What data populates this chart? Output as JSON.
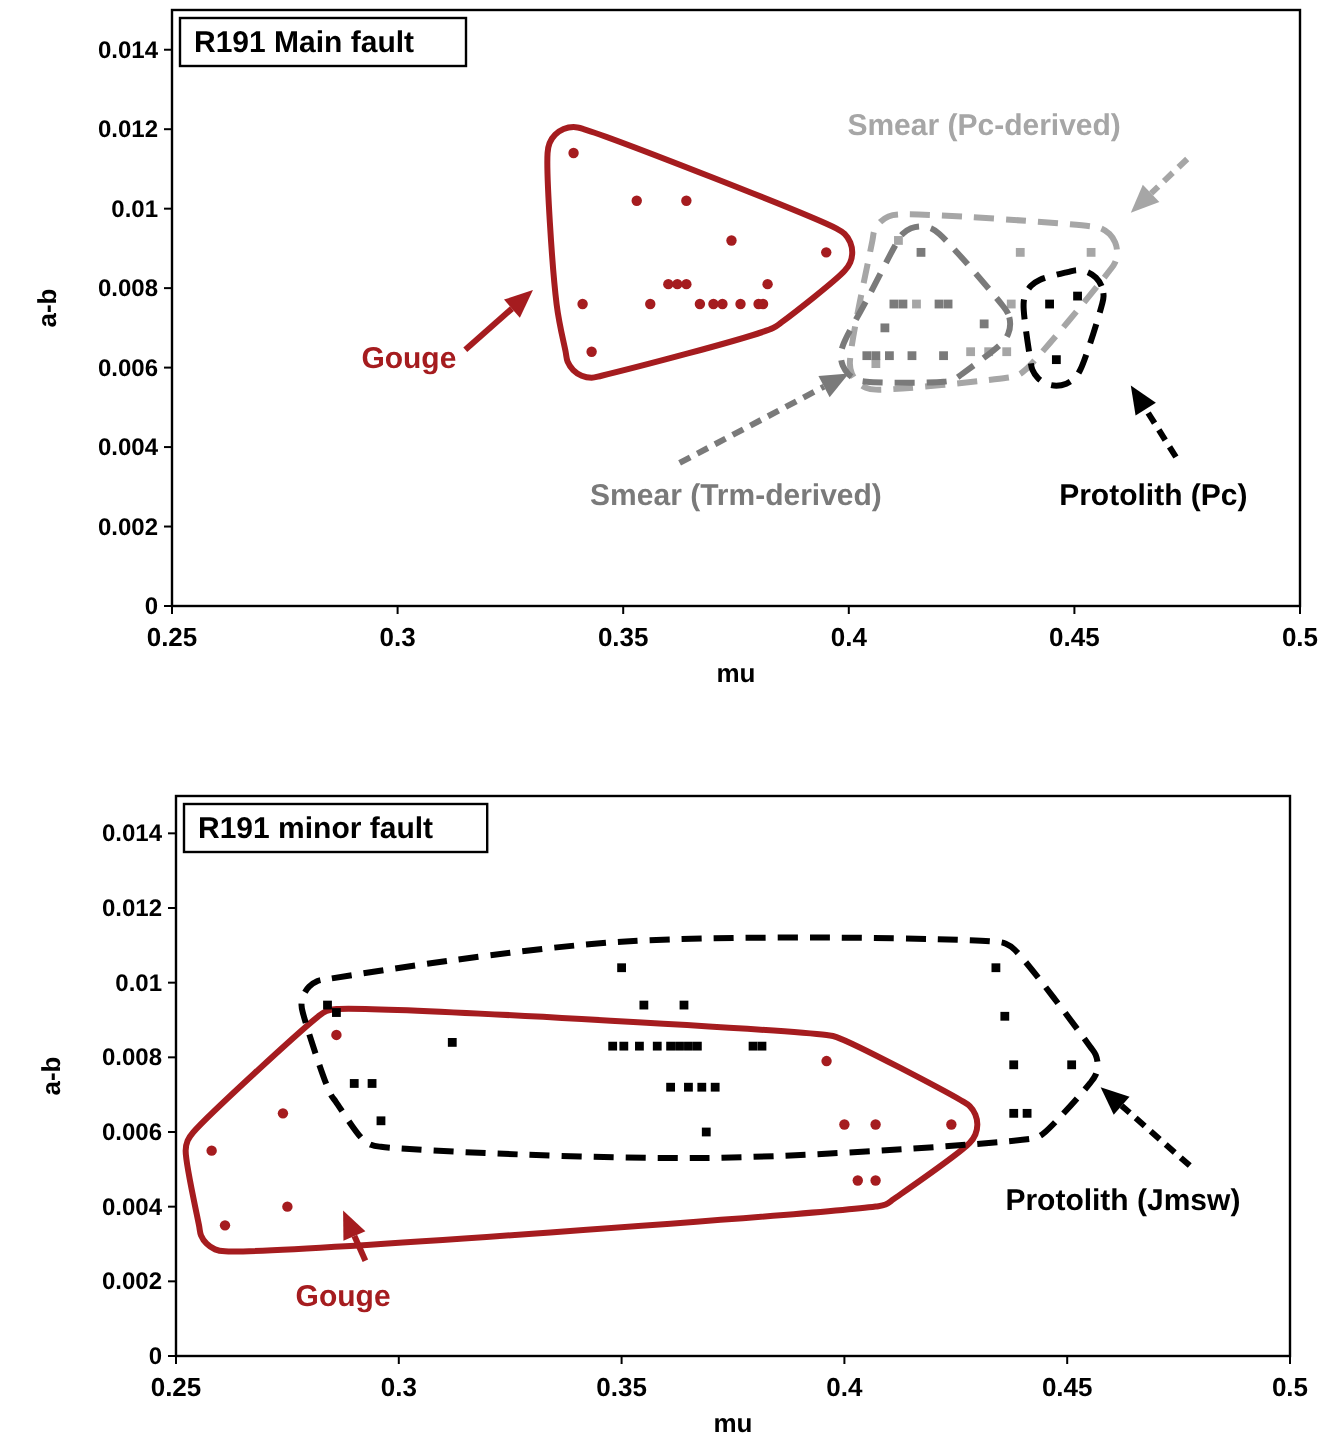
{
  "chart_data": [
    {
      "type": "scatter",
      "title": "R191 Main fault",
      "xlabel": "mu",
      "ylabel": "a-b",
      "xlim": [
        0.25,
        0.5
      ],
      "ylim": [
        0,
        0.015
      ],
      "xticks": [
        0.25,
        0.3,
        0.35,
        0.4,
        0.45,
        0.5
      ],
      "yticks": [
        0,
        0.002,
        0.004,
        0.006,
        0.008,
        0.01,
        0.012,
        0.014
      ],
      "series": [
        {
          "name": "Gouge",
          "color": "#a51c1f",
          "marker": "circle",
          "line_style": "solid",
          "x": [
            0.339,
            0.353,
            0.364,
            0.374,
            0.395,
            0.36,
            0.362,
            0.364,
            0.382,
            0.341,
            0.356,
            0.367,
            0.37,
            0.372,
            0.376,
            0.38,
            0.381,
            0.343
          ],
          "values": [
            0.0114,
            0.0102,
            0.0102,
            0.0092,
            0.0089,
            0.0081,
            0.0081,
            0.0081,
            0.0081,
            0.0076,
            0.0076,
            0.0076,
            0.0076,
            0.0076,
            0.0076,
            0.0076,
            0.0076,
            0.0064
          ]
        },
        {
          "name": "Smear (Pc-derived)",
          "color": "#a6a6a6",
          "marker": "square",
          "line_style": "dashed",
          "x": [
            0.411,
            0.415,
            0.436,
            0.406,
            0.427,
            0.431,
            0.435,
            0.438,
            0.4537
          ],
          "values": [
            0.0092,
            0.0076,
            0.0076,
            0.0061,
            0.0064,
            0.0064,
            0.0064,
            0.0089,
            0.0089
          ]
        },
        {
          "name": "Smear (Trm-derived)",
          "color": "#7a7a7a",
          "marker": "square",
          "line_style": "dashed",
          "x": [
            0.416,
            0.41,
            0.412,
            0.42,
            0.422,
            0.408,
            0.43,
            0.404,
            0.406,
            0.409,
            0.414,
            0.421
          ],
          "values": [
            0.0089,
            0.0076,
            0.0076,
            0.0076,
            0.0076,
            0.007,
            0.0071,
            0.0063,
            0.0063,
            0.0063,
            0.0063,
            0.0063
          ]
        },
        {
          "name": "Protolith (Pc)",
          "color": "#000000",
          "marker": "square",
          "line_style": "dashed",
          "x": [
            0.4445,
            0.4507,
            0.446
          ],
          "values": [
            0.0076,
            0.0078,
            0.0062
          ]
        }
      ]
    },
    {
      "type": "scatter",
      "title": "R191 minor fault",
      "legend": "bottom",
      "xlabel": "mu",
      "ylabel": "a-b",
      "xlim": [
        0.25,
        0.5
      ],
      "ylim": [
        0,
        0.015
      ],
      "xticks": [
        0.25,
        0.3,
        0.35,
        0.4,
        0.45,
        0.5
      ],
      "yticks": [
        0,
        0.002,
        0.004,
        0.006,
        0.008,
        0.01,
        0.012,
        0.014
      ],
      "series": [
        {
          "name": "Gouge",
          "color": "#a51c1f",
          "marker": "circle",
          "line_style": "solid",
          "x": [
            0.286,
            0.274,
            0.258,
            0.275,
            0.261,
            0.396,
            0.4,
            0.407,
            0.424,
            0.403,
            0.407
          ],
          "values": [
            0.0086,
            0.0065,
            0.0055,
            0.004,
            0.0035,
            0.0079,
            0.0062,
            0.0062,
            0.0062,
            0.0047,
            0.0047
          ]
        },
        {
          "name": "Protolith (Jmsw)",
          "color": "#000000",
          "marker": "square",
          "line_style": "dashed",
          "x": [
            0.284,
            0.286,
            0.312,
            0.29,
            0.294,
            0.296,
            0.35,
            0.355,
            0.364,
            0.348,
            0.3505,
            0.354,
            0.358,
            0.361,
            0.363,
            0.365,
            0.367,
            0.3795,
            0.3815,
            0.361,
            0.365,
            0.368,
            0.371,
            0.369,
            0.434,
            0.436,
            0.438,
            0.451,
            0.438,
            0.441
          ],
          "values": [
            0.0094,
            0.0092,
            0.0084,
            0.0073,
            0.0073,
            0.0063,
            0.0104,
            0.0094,
            0.0094,
            0.0083,
            0.0083,
            0.0083,
            0.0083,
            0.0083,
            0.0083,
            0.0083,
            0.0083,
            0.0083,
            0.0083,
            0.0072,
            0.0072,
            0.0072,
            0.0072,
            0.006,
            0.0104,
            0.0091,
            0.0078,
            0.0078,
            0.0065,
            0.0065
          ]
        }
      ]
    }
  ]
}
